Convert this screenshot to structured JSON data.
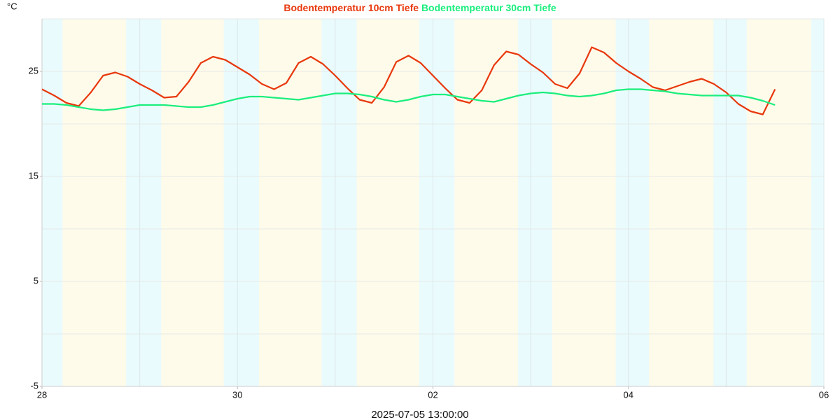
{
  "chart_data": {
    "type": "line",
    "unit_label": "°C",
    "footer": "2025-07-05 13:00:00",
    "x": [
      0,
      0.125,
      0.25,
      0.375,
      0.5,
      0.625,
      0.75,
      0.875,
      1,
      1.125,
      1.25,
      1.375,
      1.5,
      1.625,
      1.75,
      1.875,
      2,
      2.125,
      2.25,
      2.375,
      2.5,
      2.625,
      2.75,
      2.875,
      3,
      3.125,
      3.25,
      3.375,
      3.5,
      3.625,
      3.75,
      3.875,
      4,
      4.125,
      4.25,
      4.375,
      4.5,
      4.625,
      4.75,
      4.875,
      5,
      5.125,
      5.25,
      5.375,
      5.5,
      5.625,
      5.75,
      5.875,
      6,
      6.125,
      6.25,
      6.375,
      6.5,
      6.625,
      6.75,
      6.875,
      7,
      7.125,
      7.25,
      7.375,
      7.5
    ],
    "series": [
      {
        "name": "Bodentemperatur 10cm Tiefe",
        "color": "#e8380d",
        "values": [
          23.3,
          22.7,
          22.0,
          21.7,
          23.0,
          24.6,
          24.9,
          24.5,
          23.8,
          23.2,
          22.5,
          22.6,
          24.0,
          25.8,
          26.4,
          26.1,
          25.4,
          24.7,
          23.8,
          23.3,
          23.9,
          25.8,
          26.4,
          25.7,
          24.6,
          23.4,
          22.3,
          22.0,
          23.5,
          25.9,
          26.5,
          25.8,
          24.6,
          23.4,
          22.3,
          22.0,
          23.2,
          25.6,
          26.9,
          26.6,
          25.7,
          24.9,
          23.8,
          23.4,
          24.8,
          27.3,
          26.8,
          25.8,
          25.0,
          24.3,
          23.5,
          23.2,
          23.6,
          24.0,
          24.3,
          23.8,
          23.0,
          21.9,
          21.2,
          20.9,
          23.3
        ]
      },
      {
        "name": "Bodentemperatur 30cm Tiefe",
        "color": "#1aee7d",
        "values": [
          21.9,
          21.9,
          21.8,
          21.6,
          21.4,
          21.3,
          21.4,
          21.6,
          21.8,
          21.8,
          21.8,
          21.7,
          21.6,
          21.6,
          21.8,
          22.1,
          22.4,
          22.6,
          22.6,
          22.5,
          22.4,
          22.3,
          22.5,
          22.7,
          22.9,
          22.9,
          22.8,
          22.6,
          22.3,
          22.1,
          22.3,
          22.6,
          22.8,
          22.8,
          22.6,
          22.4,
          22.2,
          22.1,
          22.4,
          22.7,
          22.9,
          23.0,
          22.9,
          22.7,
          22.6,
          22.7,
          22.9,
          23.2,
          23.3,
          23.3,
          23.2,
          23.1,
          22.9,
          22.8,
          22.7,
          22.7,
          22.7,
          22.7,
          22.5,
          22.2,
          21.8
        ]
      }
    ],
    "xlim": [
      0,
      8
    ],
    "xticks": [
      {
        "value": 0,
        "label": "28"
      },
      {
        "value": 2,
        "label": "30"
      },
      {
        "value": 4,
        "label": "02"
      },
      {
        "value": 6,
        "label": "04"
      },
      {
        "value": 8,
        "label": "06"
      }
    ],
    "xgrid_step": 1,
    "ylim": [
      -5,
      30
    ],
    "yticks": [
      -5,
      5,
      15,
      25
    ],
    "ygrid_step": 5,
    "night_bands": [
      [
        0,
        0.21
      ],
      [
        0.86,
        1.22
      ],
      [
        1.86,
        2.22
      ],
      [
        2.86,
        3.22
      ],
      [
        3.86,
        4.22
      ],
      [
        4.87,
        5.22
      ],
      [
        5.87,
        6.21
      ],
      [
        6.87,
        7.21
      ],
      [
        7.87,
        8
      ]
    ],
    "day_color": "#fffbea",
    "night_color": "#eafbfd"
  }
}
